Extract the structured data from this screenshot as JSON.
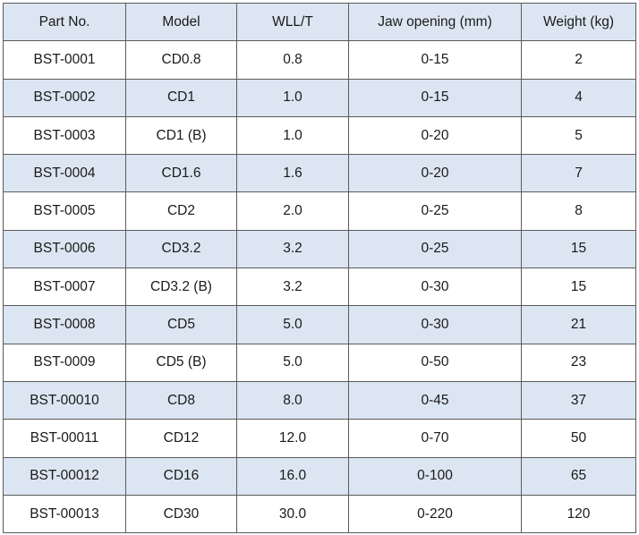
{
  "table": {
    "header": [
      "Part No.",
      "Model",
      "WLL/T",
      "Jaw opening (mm)",
      "Weight (kg)"
    ],
    "rows": [
      [
        "BST-0001",
        "CD0.8",
        "0.8",
        "0-15",
        "2"
      ],
      [
        "BST-0002",
        "CD1",
        "1.0",
        "0-15",
        "4"
      ],
      [
        "BST-0003",
        "CD1 (B)",
        "1.0",
        "0-20",
        "5"
      ],
      [
        "BST-0004",
        "CD1.6",
        "1.6",
        "0-20",
        "7"
      ],
      [
        "BST-0005",
        "CD2",
        "2.0",
        "0-25",
        "8"
      ],
      [
        "BST-0006",
        "CD3.2",
        "3.2",
        "0-25",
        "15"
      ],
      [
        "BST-0007",
        "CD3.2 (B)",
        "3.2",
        "0-30",
        "15"
      ],
      [
        "BST-0008",
        "CD5",
        "5.0",
        "0-30",
        "21"
      ],
      [
        "BST-0009",
        "CD5 (B)",
        "5.0",
        "0-50",
        "23"
      ],
      [
        "BST-00010",
        "CD8",
        "8.0",
        "0-45",
        "37"
      ],
      [
        "BST-00011",
        "CD12",
        "12.0",
        "0-70",
        "50"
      ],
      [
        "BST-00012",
        "CD16",
        "16.0",
        "0-100",
        "65"
      ],
      [
        "BST-00013",
        "CD30",
        "30.0",
        "0-220",
        "120"
      ]
    ]
  }
}
